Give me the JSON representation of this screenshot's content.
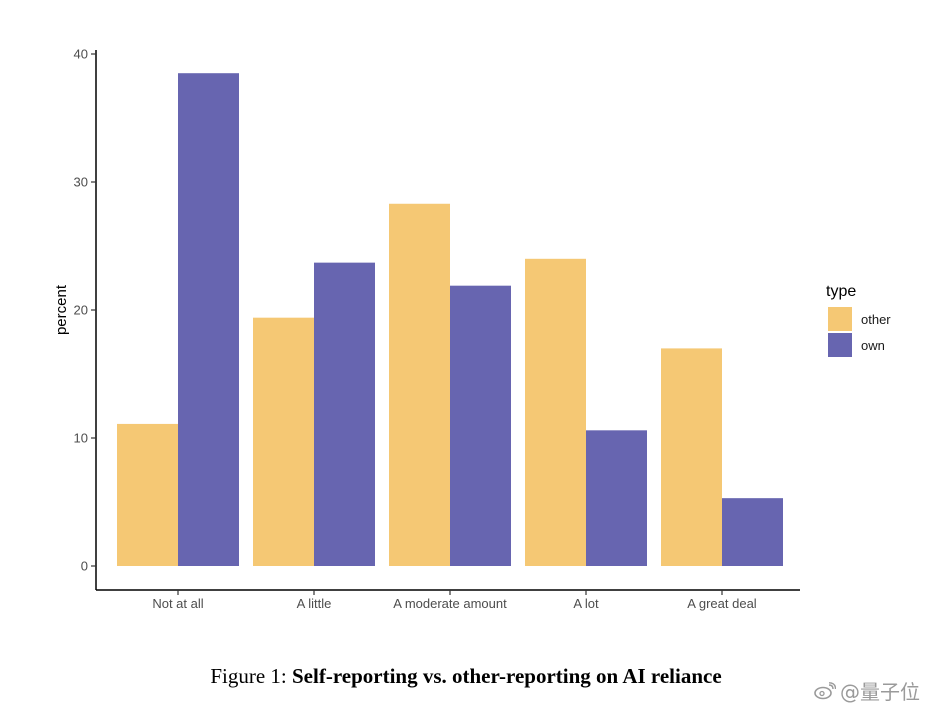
{
  "chart_data": {
    "type": "bar",
    "categories": [
      "Not at all",
      "A little",
      "A moderate amount",
      "A lot",
      "A great deal"
    ],
    "series": [
      {
        "name": "other",
        "values": [
          11.1,
          19.4,
          28.3,
          24.0,
          17.0
        ],
        "color": "#F5C874"
      },
      {
        "name": "own",
        "values": [
          38.5,
          23.7,
          21.9,
          10.6,
          5.3
        ],
        "color": "#6765B0"
      }
    ],
    "title": "",
    "xlabel": "",
    "ylabel": "percent",
    "ylim": [
      0,
      40
    ],
    "yticks": [
      0,
      10,
      20,
      30,
      40
    ],
    "grid": false,
    "legend": {
      "title": "type",
      "position": "right"
    }
  },
  "caption": {
    "prefix": "Figure 1:",
    "title": "Self-reporting vs. other-reporting on AI reliance"
  },
  "watermark": {
    "text": "@量子位"
  }
}
